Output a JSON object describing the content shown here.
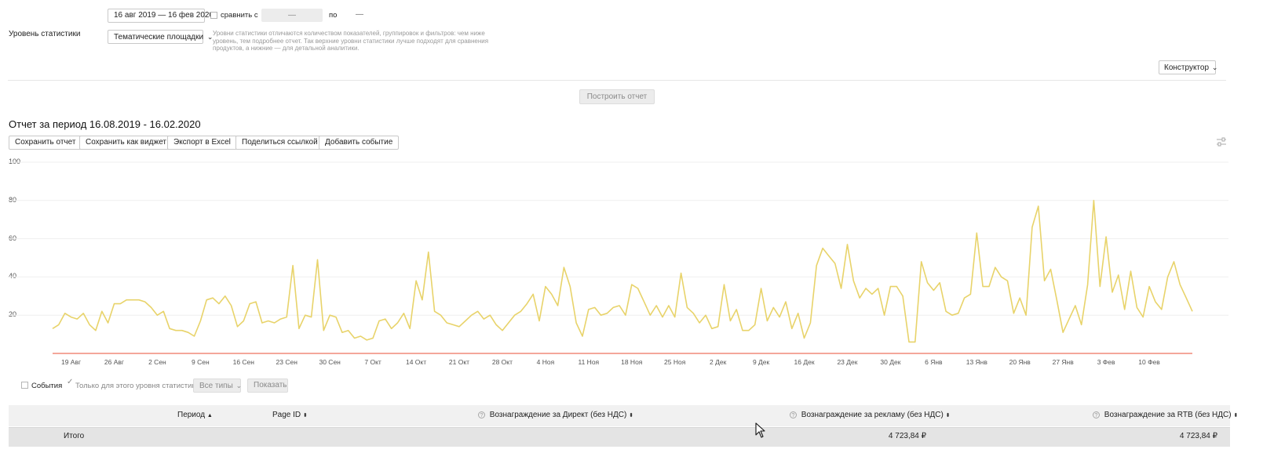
{
  "filters": {
    "date_range": "16 авг 2019 — 16 фев 2020",
    "compare_label": "сравнить с",
    "compare_from": "—",
    "compare_to_label": "по",
    "compare_to": "—",
    "stat_level_label": "Уровень статистики",
    "stat_level_value": "Тематические площадки",
    "stat_level_hint": "Уровни статистики отличаются количеством показателей, группировок и фильтров: чем ниже уровень, тем подробнее отчет. Так верхние уровни статистики лучше подходят для сравнения продуктов, а нижние — для детальной аналитики.",
    "constructor_label": "Конструктор",
    "build_report_label": "Построить отчет"
  },
  "report": {
    "title": "Отчет за период 16.08.2019 - 16.02.2020",
    "actions": {
      "save": "Сохранить отчет",
      "save_widget": "Сохранить как виджет",
      "export_excel": "Экспорт в Excel",
      "share_link": "Поделиться ссылкой",
      "add_event": "Добавить событие"
    }
  },
  "events_bar": {
    "events_label": "События",
    "only_level_label": "Только для этого уровня статистики",
    "types_label": "Все типы",
    "show_label": "Показать"
  },
  "table": {
    "headers": {
      "period": "Период",
      "page_id": "Page ID",
      "direct_reward": "Вознаграждение за Директ (без НДС)",
      "ad_reward": "Вознаграждение за рекламу (без НДС)",
      "rtb_reward": "Вознаграждение за RTB (без НДС)"
    },
    "total_row": {
      "label": "Итого",
      "ad_reward": "4 723,84 ₽",
      "rtb_reward": "4 723,84 ₽"
    }
  },
  "colors": {
    "series_yellow": "#e8d36a",
    "series_red": "#f08a78",
    "grid": "#efefef"
  },
  "chart_data": {
    "type": "line",
    "ylim": [
      0,
      100
    ],
    "yticks": [
      "20",
      "40",
      "60",
      "80",
      "100"
    ],
    "xticks": [
      "19 Авг",
      "26 Авг",
      "2 Сен",
      "9 Сен",
      "16 Сен",
      "23 Сен",
      "30 Сен",
      "7 Окт",
      "14 Окт",
      "21 Окт",
      "28 Окт",
      "4 Ноя",
      "11 Ноя",
      "18 Ноя",
      "25 Ноя",
      "2 Дек",
      "9 Дек",
      "16 Дек",
      "23 Дек",
      "30 Дек",
      "6 Янв",
      "13 Янв",
      "20 Янв",
      "27 Янв",
      "3 Фев",
      "10 Фев"
    ],
    "x_start": "16 Авг",
    "series": [
      {
        "color": "#e8d36a",
        "values": [
          13,
          15,
          21,
          19,
          18,
          21,
          15,
          12,
          22,
          16,
          26,
          26,
          28,
          28,
          28,
          27,
          24,
          20,
          22,
          13,
          12,
          12,
          11,
          9,
          17,
          28,
          29,
          26,
          30,
          25,
          14,
          17,
          26,
          27,
          16,
          17,
          16,
          18,
          19,
          46,
          13,
          20,
          19,
          49,
          12,
          20,
          19,
          11,
          12,
          8,
          9,
          7,
          8,
          17,
          18,
          13,
          16,
          21,
          13,
          38,
          28,
          53,
          22,
          20,
          16,
          15,
          14,
          17,
          20,
          22,
          18,
          20,
          15,
          12,
          16,
          20,
          22,
          26,
          31,
          17,
          35,
          31,
          25,
          45,
          35,
          16,
          9,
          23,
          24,
          20,
          21,
          24,
          25,
          20,
          36,
          34,
          27,
          20,
          25,
          19,
          25,
          19,
          42,
          24,
          21,
          16,
          20,
          13,
          14,
          36,
          17,
          23,
          12,
          12,
          15,
          34,
          17,
          24,
          19,
          27,
          13,
          21,
          8,
          16,
          46,
          55,
          51,
          47,
          34,
          57,
          38,
          29,
          34,
          31,
          34,
          20,
          35,
          35,
          30,
          6,
          6,
          48,
          37,
          33,
          37,
          22,
          20,
          21,
          29,
          31,
          63,
          35,
          35,
          45,
          40,
          38,
          21,
          29,
          20,
          66,
          77,
          38,
          44,
          28,
          11,
          18,
          25,
          15,
          36,
          80,
          35,
          61,
          32,
          41,
          23,
          43,
          24,
          19,
          35,
          27,
          23,
          40,
          48,
          36,
          29,
          22
        ]
      },
      {
        "color": "#f08a78",
        "values": [
          0,
          0
        ]
      }
    ]
  }
}
